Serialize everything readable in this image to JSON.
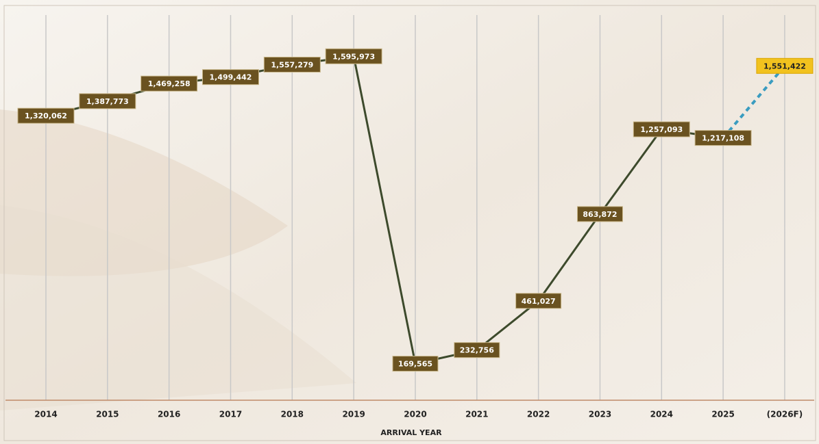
{
  "chart_data": {
    "type": "line",
    "x_label": "ARRIVAL YEAR",
    "categories": [
      "2014",
      "2015",
      "2016",
      "2017",
      "2018",
      "2019",
      "2020",
      "2021",
      "2022",
      "2023",
      "2024",
      "2025",
      "(2026F)"
    ],
    "series": [
      {
        "color": "#3d4a2c",
        "values": [
          1320062,
          1387773,
          1469258,
          1499442,
          1557279,
          1595973,
          169565,
          232756,
          461027,
          863872,
          1257093,
          1217108,
          null
        ],
        "value_labels": [
          "1,320,062",
          "1,387,773",
          "1,469,258",
          "1,499,442",
          "1,557,279",
          "1,595,973",
          "169,565",
          "232,756",
          "461,027",
          "863,872",
          "1,257,093",
          "1,217,108",
          null
        ]
      },
      {
        "color": "#3a9cc0",
        "dashed": true,
        "label_color": "#f2c21e",
        "values": [
          null,
          null,
          null,
          null,
          null,
          null,
          null,
          null,
          null,
          null,
          null,
          1217108,
          1551422
        ],
        "value_labels": [
          null,
          null,
          null,
          null,
          null,
          null,
          null,
          null,
          null,
          null,
          null,
          null,
          "1,551,422"
        ]
      }
    ],
    "ylim": [
      0,
      1800000
    ],
    "grid": true
  }
}
